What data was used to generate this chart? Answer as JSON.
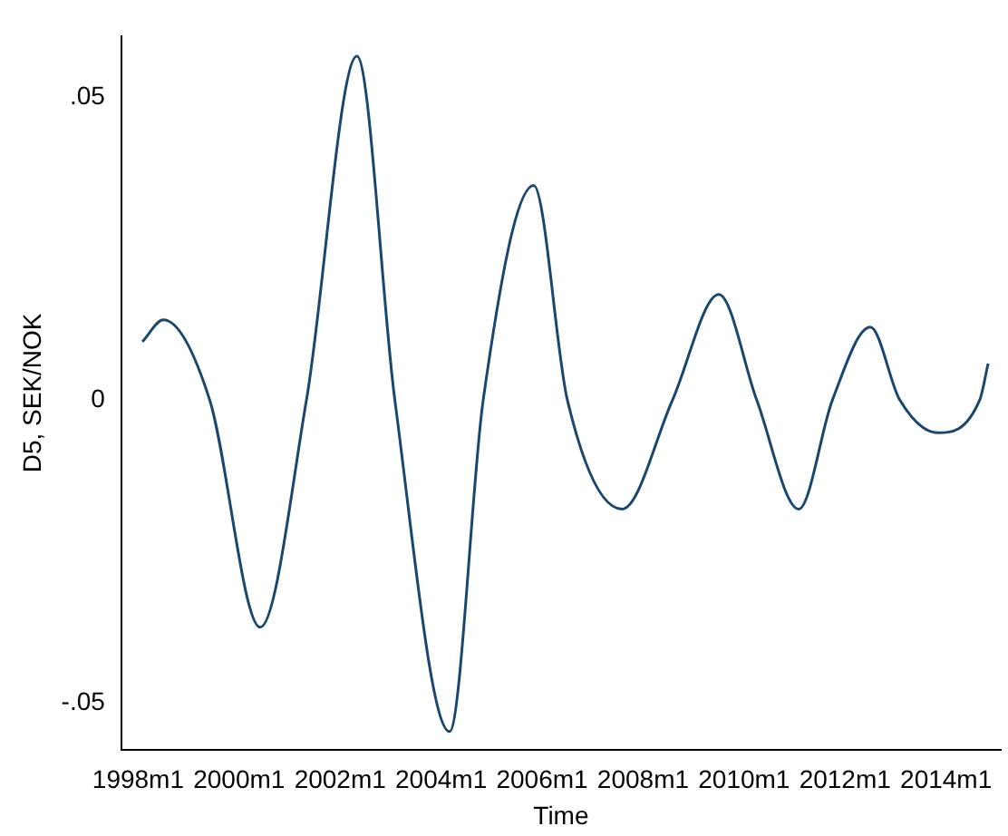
{
  "chart_data": {
    "type": "line",
    "xlabel": "Time",
    "ylabel": "D5, SEK/NOK",
    "x": [
      "1998-02",
      "1998-07",
      "1999-06",
      "2000-06",
      "2001-05",
      "2002-05",
      "2003-02",
      "2004-03",
      "2004-11",
      "2005-11",
      "2006-07",
      "2007-08",
      "2008-08",
      "2009-07",
      "2010-04",
      "2011-02",
      "2011-10",
      "2012-07",
      "2013-02",
      "2013-11",
      "2014-09",
      "2014-11"
    ],
    "series": [
      {
        "color": "#1a476f",
        "values": [
          0.0096,
          0.0132,
          0,
          -0.0375,
          0,
          0.0567,
          0,
          -0.0547,
          0,
          0.0354,
          0,
          -0.018,
          0,
          0.0174,
          0,
          -0.018,
          0,
          0.012,
          0,
          -0.0054,
          0,
          0.006
        ]
      }
    ],
    "xlim": [
      "1997-09",
      "2015-02"
    ],
    "ylim": [
      -0.0577,
      0.06
    ],
    "xticks": [
      {
        "value": "1998-01",
        "label": "1998m1"
      },
      {
        "value": "2000-01",
        "label": "2000m1"
      },
      {
        "value": "2002-01",
        "label": "2002m1"
      },
      {
        "value": "2004-01",
        "label": "2004m1"
      },
      {
        "value": "2006-01",
        "label": "2006m1"
      },
      {
        "value": "2008-01",
        "label": "2008m1"
      },
      {
        "value": "2010-01",
        "label": "2010m1"
      },
      {
        "value": "2012-01",
        "label": "2012m1"
      },
      {
        "value": "2014-01",
        "label": "2014m1"
      }
    ],
    "yticks": [
      {
        "value": -0.05,
        "label": "-.05"
      },
      0,
      {
        "value": 0.05,
        "label": ".05"
      }
    ],
    "grid": false,
    "legend": false,
    "marker": "none",
    "line_style": "solid"
  }
}
